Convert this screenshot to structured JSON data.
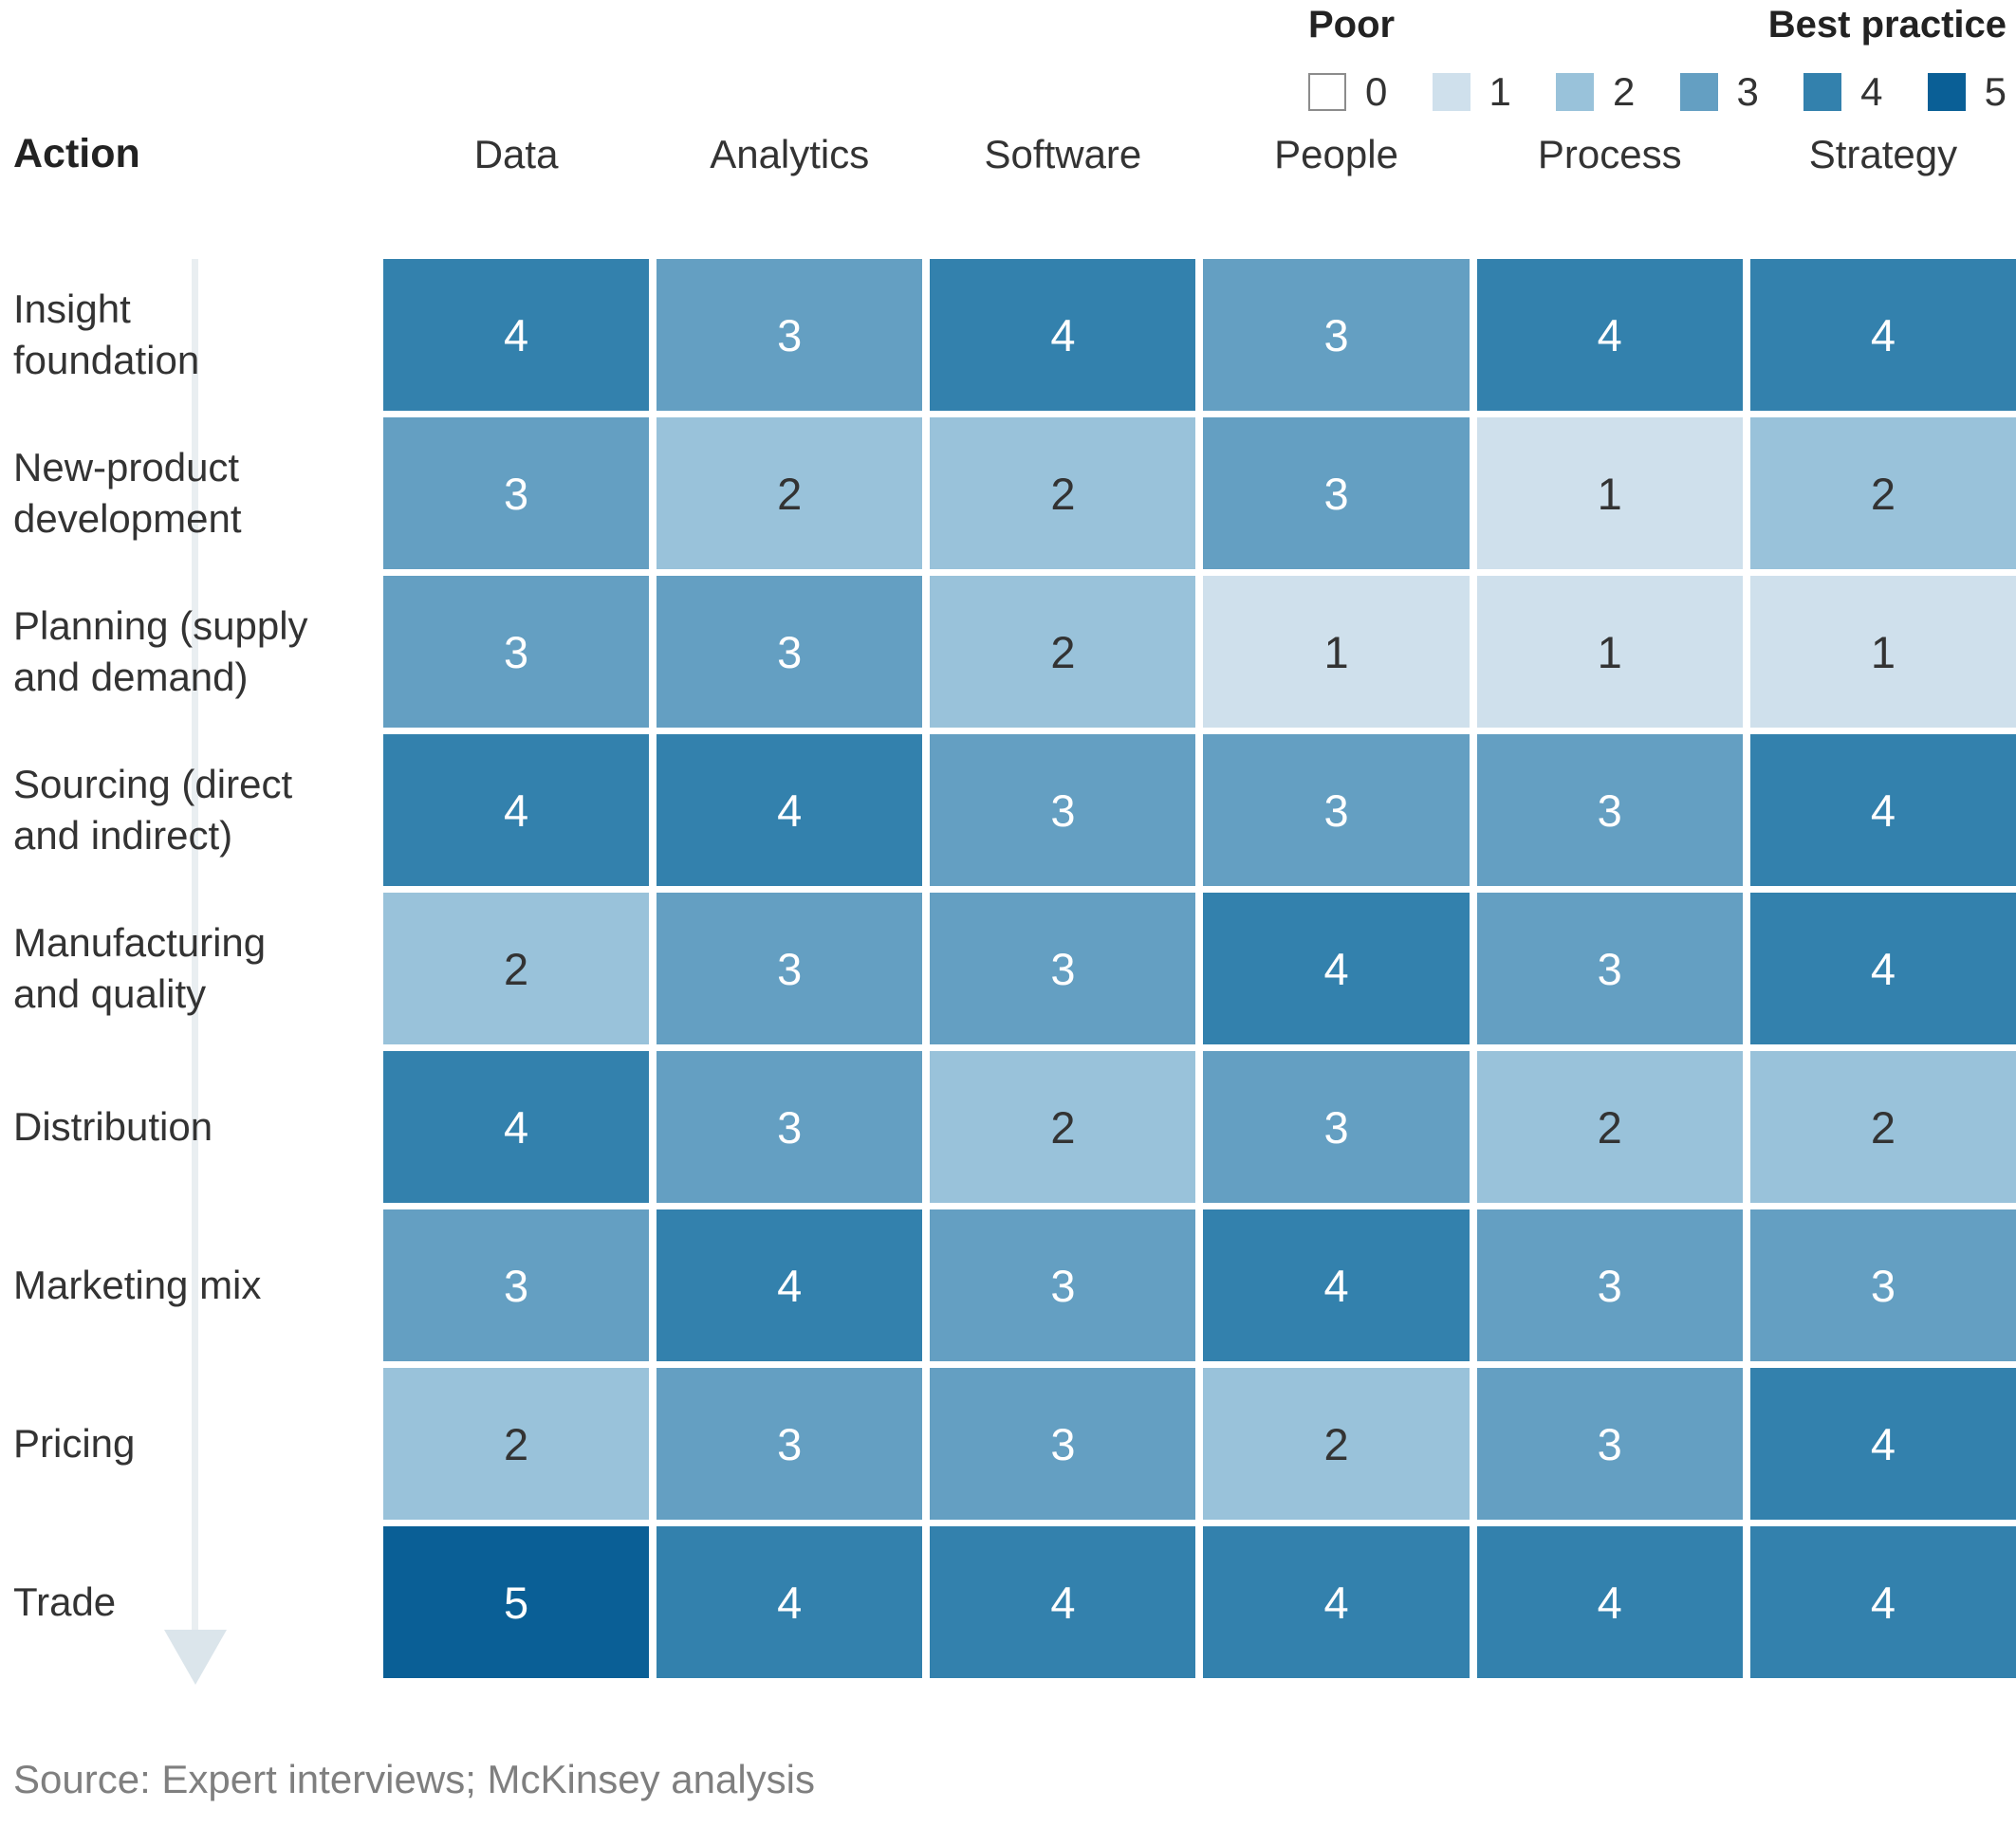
{
  "header": {
    "action_label": "Action"
  },
  "legend": {
    "poor_label": "Poor",
    "best_label": "Best practice",
    "levels": [
      0,
      1,
      2,
      3,
      4,
      5
    ],
    "swatch_border_color_for_zero": "#8c8c8c"
  },
  "chart_data": {
    "type": "heatmap",
    "x_categories": [
      "Data",
      "Analytics",
      "Software",
      "People",
      "Process",
      "Strategy"
    ],
    "y_categories": [
      "Insight foundation",
      "New-product development",
      "Planning (supply and demand)",
      "Sourcing (direct and indirect)",
      "Manufacturing and quality",
      "Distribution",
      "Marketing mix",
      "Pricing",
      "Trade"
    ],
    "values": [
      [
        4,
        3,
        4,
        3,
        4,
        4
      ],
      [
        3,
        2,
        2,
        3,
        1,
        2
      ],
      [
        3,
        3,
        2,
        1,
        1,
        1
      ],
      [
        4,
        4,
        3,
        3,
        3,
        4
      ],
      [
        2,
        3,
        3,
        4,
        3,
        4
      ],
      [
        4,
        3,
        2,
        3,
        2,
        2
      ],
      [
        3,
        4,
        3,
        4,
        3,
        3
      ],
      [
        2,
        3,
        3,
        2,
        3,
        4
      ],
      [
        5,
        4,
        4,
        4,
        4,
        4
      ]
    ],
    "scale": {
      "min": 0,
      "max": 5,
      "min_label": "Poor",
      "max_label": "Best practice"
    },
    "colors": {
      "0": "#ffffff",
      "1": "#cfe0ec",
      "2": "#99c2da",
      "3": "#649fc2",
      "4": "#3381ad",
      "5": "#0a5f96"
    },
    "text_colors": {
      "dark": "#333333",
      "light": "#ffffff",
      "light_text_min_value": 3
    },
    "legend_position": "top-right",
    "grid": false
  },
  "source_note": "Source: Expert interviews; McKinsey analysis"
}
